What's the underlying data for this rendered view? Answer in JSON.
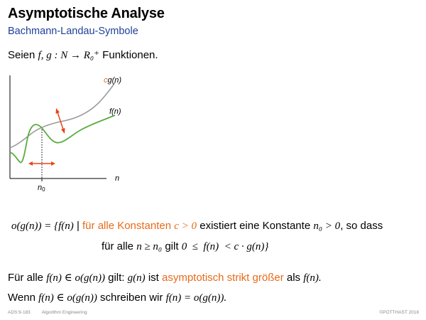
{
  "slide": {
    "title": "Asymptotische Analyse",
    "subtitle": "Bachmann-Landau-Symbole",
    "intro": {
      "prefix": "Seien ",
      "math": "f, g : N → R₀⁺",
      "suffix": " Funktionen."
    },
    "plot": {
      "curve_cg": {
        "label_c": "c",
        "label_rest": "g(n)"
      },
      "curve_f": {
        "label": "f(n)"
      },
      "x_axis_label": "n",
      "n0_label": "n",
      "n0_sub": "0"
    },
    "definition": {
      "lhs": "o(g(n)) = {f(n)",
      "bar": "|",
      "orange_text": "für alle Konstanten",
      "orange_math": "c > 0",
      "mid": "existiert eine Konstante",
      "n0": "n₀ > 0",
      "tail": ", so dass",
      "line2_prefix": "für alle",
      "line2_cond": "n ≥ n₀",
      "line2_mid": "gilt",
      "line2_ineq": "0  ≤  f(n)  < c · g(n)}"
    },
    "statement1": {
      "prefix": "Für alle",
      "math1": "f(n) ∈ o(g(n))",
      "mid": "gilt:",
      "math2": "g(n)",
      "mid2": "ist",
      "orange": "asymptotisch strikt größer",
      "mid3": "als",
      "math3": "f(n)."
    },
    "statement2": {
      "prefix": "Wenn",
      "math1": "f(n) ∈ o(g(n))",
      "mid": "schreiben wir",
      "math2": "f(n) = o(g(n))."
    },
    "footer": {
      "left": "ADS:9-183",
      "middle": "Algorithm Engineering",
      "right": "©POTTHAST 2018"
    }
  },
  "colors": {
    "accent_orange": "#e86a1a",
    "subtitle_blue": "#1f3f99",
    "curve_gray": "#9a9a9a",
    "curve_green": "#5aac3f",
    "arrow_red": "#e8451a"
  }
}
